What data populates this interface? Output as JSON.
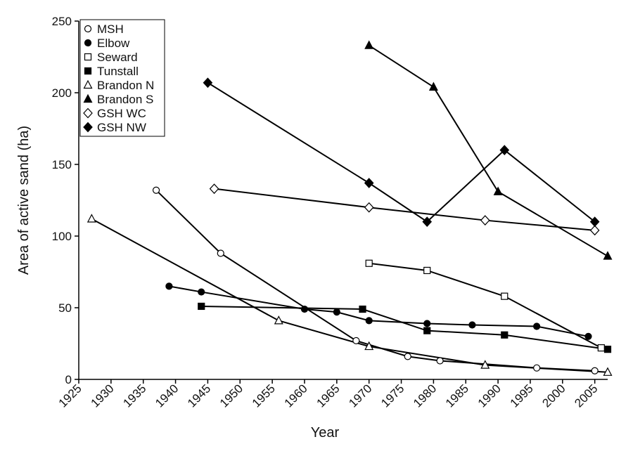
{
  "chart_data": {
    "type": "line",
    "x_label": "Year",
    "y_label": "Area of active sand (ha)",
    "xlim": [
      1925,
      2007
    ],
    "ylim": [
      0,
      250
    ],
    "xticks": [
      1925,
      1930,
      1935,
      1940,
      1945,
      1950,
      1955,
      1960,
      1965,
      1970,
      1975,
      1980,
      1985,
      1990,
      1995,
      2000,
      2005
    ],
    "yticks": [
      0,
      50,
      100,
      150,
      200,
      250
    ],
    "legend": "upper left",
    "series": [
      {
        "name": "MSH",
        "color": "#000000",
        "marker": "circle",
        "marker_fill": "#ffffff",
        "x": [
          1937,
          1947,
          1968,
          1976,
          1981,
          1996,
          2005
        ],
        "values": [
          132,
          88,
          27,
          16,
          13,
          8,
          6
        ]
      },
      {
        "name": "Elbow",
        "color": "#000000",
        "marker": "circle",
        "marker_fill": "#000000",
        "x": [
          1939,
          1944,
          1960,
          1965,
          1970,
          1979,
          1986,
          1996,
          2004
        ],
        "values": [
          65,
          61,
          49,
          47,
          41,
          39,
          38,
          37,
          30
        ]
      },
      {
        "name": "Seward",
        "color": "#000000",
        "marker": "square",
        "marker_fill": "#ffffff",
        "x": [
          1970,
          1979,
          1991,
          2006
        ],
        "values": [
          81,
          76,
          58,
          22
        ]
      },
      {
        "name": "Tunstall",
        "color": "#000000",
        "marker": "square",
        "marker_fill": "#000000",
        "x": [
          1944,
          1969,
          1979,
          1991,
          2007
        ],
        "values": [
          51,
          49,
          34,
          31,
          21
        ]
      },
      {
        "name": "Brandon N",
        "color": "#000000",
        "marker": "triangle",
        "marker_fill": "#ffffff",
        "x": [
          1927,
          1956,
          1970,
          1988,
          2007
        ],
        "values": [
          112,
          41,
          23,
          10,
          5
        ]
      },
      {
        "name": "Brandon S",
        "color": "#000000",
        "marker": "triangle",
        "marker_fill": "#000000",
        "x": [
          1970,
          1980,
          1990,
          2007
        ],
        "values": [
          233,
          204,
          131,
          86
        ]
      },
      {
        "name": "GSH WC",
        "color": "#000000",
        "marker": "diamond",
        "marker_fill": "#ffffff",
        "x": [
          1946,
          1970,
          1988,
          2005
        ],
        "values": [
          133,
          120,
          111,
          104
        ]
      },
      {
        "name": "GSH NW",
        "color": "#000000",
        "marker": "diamond",
        "marker_fill": "#000000",
        "x": [
          1945,
          1970,
          1979,
          1991,
          2005
        ],
        "values": [
          207,
          137,
          110,
          160,
          110
        ]
      }
    ]
  }
}
